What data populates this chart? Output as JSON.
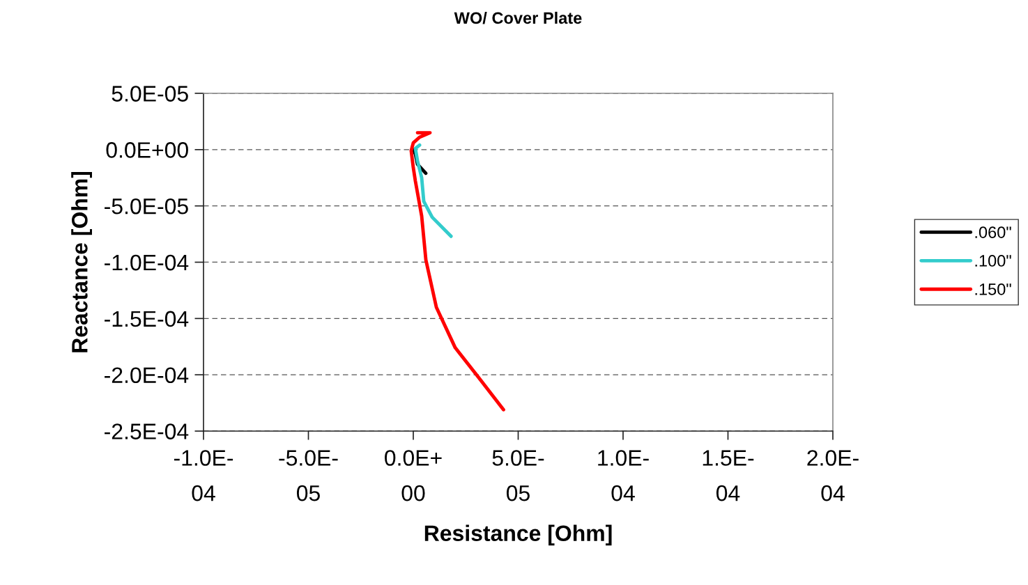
{
  "chart_data": {
    "type": "line",
    "title": "WO/ Cover Plate",
    "xlabel": "Resistance [Ohm]",
    "ylabel": "Reactance [Ohm]",
    "xlim": [
      -0.0001,
      0.0002
    ],
    "ylim": [
      -0.00025,
      5e-05
    ],
    "xticks": [
      {
        "value": -0.0001,
        "label": "-1.0E-04"
      },
      {
        "value": -5e-05,
        "label": "-5.0E-05"
      },
      {
        "value": 0,
        "label": "0.0E+00"
      },
      {
        "value": 5e-05,
        "label": "5.0E-05"
      },
      {
        "value": 0.0001,
        "label": "1.0E-04"
      },
      {
        "value": 0.00015,
        "label": "1.5E-04"
      },
      {
        "value": 0.0002,
        "label": "2.0E-04"
      }
    ],
    "yticks": [
      {
        "value": 5e-05,
        "label": "5.0E-05"
      },
      {
        "value": 0,
        "label": "0.0E+00"
      },
      {
        "value": -5e-05,
        "label": "-5.0E-05"
      },
      {
        "value": -0.0001,
        "label": "-1.0E-04"
      },
      {
        "value": -0.00015,
        "label": "-1.5E-04"
      },
      {
        "value": -0.0002,
        "label": "-2.0E-04"
      },
      {
        "value": -0.00025,
        "label": "-2.5E-04"
      }
    ],
    "grid": "y",
    "legend": "right",
    "marker": "none",
    "line_style": "solid",
    "series": [
      {
        "name": ".060\"",
        "color": "#000000",
        "x": [
          0.0,
          1e-06,
          2e-06,
          6e-06
        ],
        "values": [
          0.0,
          -4e-06,
          -1.3e-05,
          -2.1e-05
        ]
      },
      {
        "name": ".100\"",
        "color": "#33cccc",
        "x": [
          3e-06,
          1e-06,
          2e-06,
          4e-06,
          5e-06,
          9e-06,
          1.8e-05
        ],
        "values": [
          4e-06,
          1e-06,
          -1e-05,
          -2.5e-05,
          -4.6e-05,
          -6e-05,
          -7.7e-05
        ]
      },
      {
        "name": ".150\"",
        "color": "#ff0000",
        "x": [
          2e-06,
          8e-06,
          3e-06,
          0.0,
          -1e-06,
          0.0,
          1e-06,
          4e-06,
          6e-06,
          1.1e-05,
          2e-05,
          3.1e-05,
          4.3e-05
        ],
        "values": [
          1.5e-05,
          1.5e-05,
          1.1e-05,
          6e-06,
          -1e-06,
          -1.6e-05,
          -2.8e-05,
          -5.9e-05,
          -9.8e-05,
          -0.00014,
          -0.000176,
          -0.000202,
          -0.000231
        ]
      }
    ]
  }
}
